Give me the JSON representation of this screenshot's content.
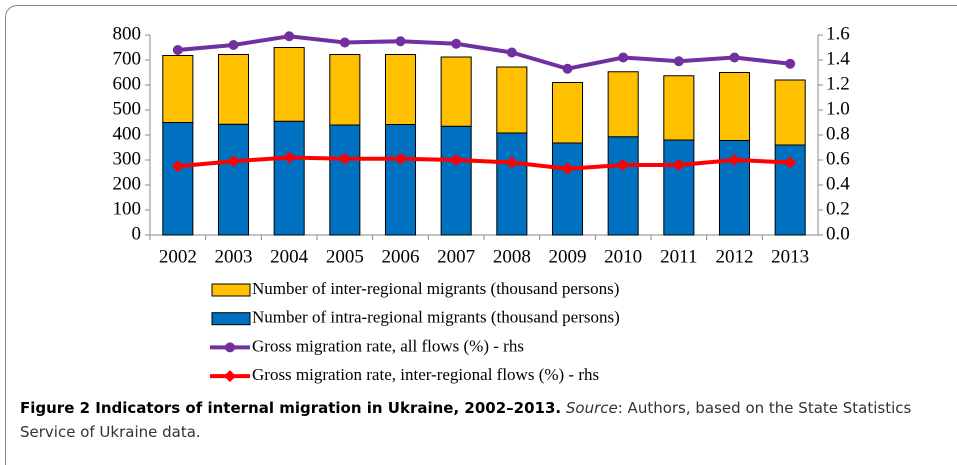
{
  "chart_data": {
    "type": "bar-line",
    "categories": [
      "2002",
      "2003",
      "2004",
      "2005",
      "2006",
      "2007",
      "2008",
      "2009",
      "2010",
      "2011",
      "2012",
      "2013"
    ],
    "series": [
      {
        "name": "Number of inter-regional migrants (thousand persons)",
        "type": "bar",
        "color": "#ffc000",
        "values": [
          268,
          279,
          295,
          282,
          280,
          277,
          264,
          242,
          260,
          257,
          272,
          260
        ]
      },
      {
        "name": "Number of intra-regional migrants (thousand persons)",
        "type": "bar",
        "color": "#0070c0",
        "values": [
          450,
          443,
          455,
          440,
          442,
          435,
          408,
          368,
          393,
          380,
          378,
          360
        ]
      },
      {
        "name": "Gross migration rate, all flows (%) - rhs",
        "type": "line",
        "marker": "circle",
        "axis": "y2",
        "color": "#7030a0",
        "values": [
          1.48,
          1.52,
          1.59,
          1.54,
          1.55,
          1.53,
          1.46,
          1.33,
          1.42,
          1.39,
          1.42,
          1.37
        ]
      },
      {
        "name": "Gross migration rate, inter-regional flows (%) - rhs",
        "type": "line",
        "marker": "diamond",
        "axis": "y2",
        "color": "#ff0000",
        "values": [
          0.55,
          0.59,
          0.62,
          0.61,
          0.61,
          0.6,
          0.58,
          0.53,
          0.56,
          0.56,
          0.6,
          0.58
        ]
      }
    ],
    "stacked": true,
    "ylim": [
      0,
      800
    ],
    "yticks": [
      0,
      100,
      200,
      300,
      400,
      500,
      600,
      700,
      800
    ],
    "y2lim": [
      0,
      1.6
    ],
    "y2ticks": [
      {
        "value": 0,
        "label": "0.0"
      },
      0.2,
      0.4,
      0.6,
      0.8,
      {
        "value": 1,
        "label": "1.0"
      },
      1.2,
      1.4,
      1.6
    ],
    "legend": "bottom"
  },
  "caption": {
    "title": "Figure 2 Indicators of internal migration in Ukraine, 2002–2013.",
    "source_label": "Source",
    "source_text": ": Authors, based on the State Statistics Service of Ukraine data."
  }
}
